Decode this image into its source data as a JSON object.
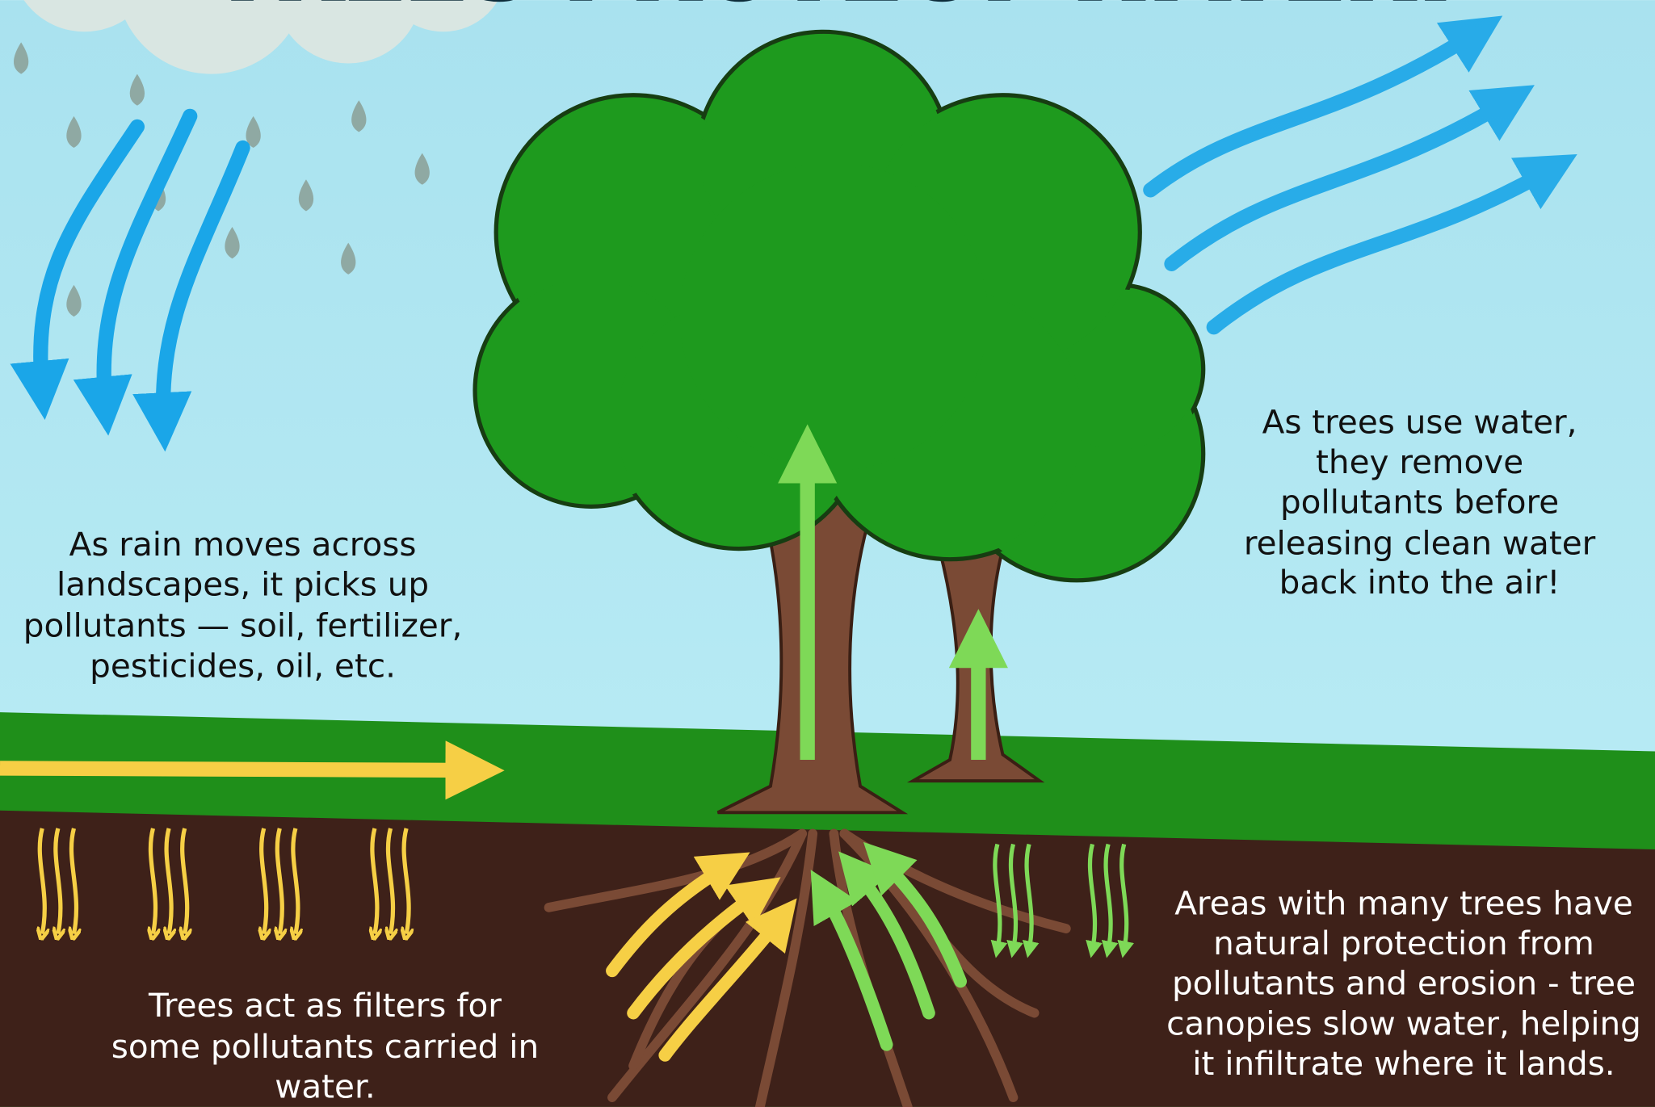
{
  "header": {
    "title": "TREES PROTECT WATER!"
  },
  "notes": [
    {
      "lines": [
        "As rain moves across",
        "landscapes, it picks up",
        "pollutants — soil, fertilizer,",
        "pesticides, oil, etc."
      ]
    },
    {
      "lines": [
        "As trees use water,",
        "they remove",
        "pollutants before",
        "releasing clean water",
        "back into the air!"
      ]
    },
    {
      "lines": [
        "Trees act as filters for",
        "some pollutants carried in",
        "water."
      ]
    },
    {
      "lines": [
        "Areas with many trees have",
        "natural protection from",
        "pollutants and erosion - tree",
        "canopies slow water, helping",
        "it infiltrate where it lands."
      ]
    }
  ]
}
